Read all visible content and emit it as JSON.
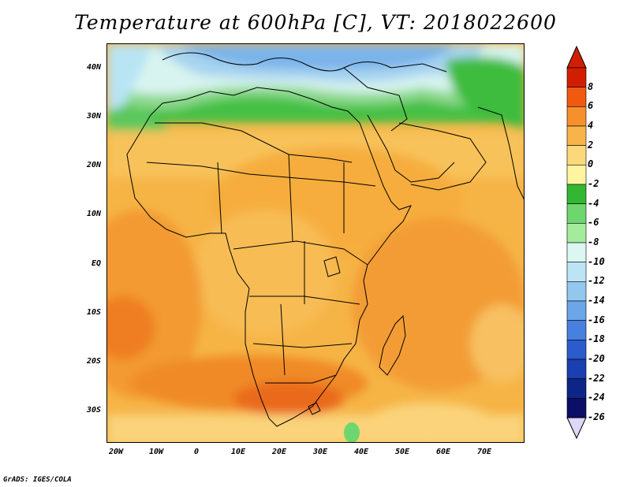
{
  "title": "Temperature at 600hPa [C], VT: 2018022600",
  "credit": "GrADS: IGES/COLA",
  "lat_labels": [
    "40N",
    "30N",
    "20N",
    "10N",
    "EQ",
    "10S",
    "20S",
    "30S"
  ],
  "lon_labels": [
    "20W",
    "10W",
    "0",
    "10E",
    "20E",
    "30E",
    "40E",
    "50E",
    "60E",
    "70E"
  ],
  "colorbar": {
    "labels": [
      "8",
      "6",
      "4",
      "2",
      "0",
      "-2",
      "-4",
      "-6",
      "-8",
      "-10",
      "-12",
      "-14",
      "-16",
      "-18",
      "-20",
      "-22",
      "-24",
      "-26"
    ],
    "colors": [
      "#d21e00",
      "#f05a10",
      "#f6902a",
      "#f7b44a",
      "#fbd87c",
      "#fff4a0",
      "#33b733",
      "#6ed66e",
      "#a4ec9c",
      "#dcf7f2",
      "#bde4f5",
      "#94c7ee",
      "#6aa6e8",
      "#4880e0",
      "#2c5ccc",
      "#1a3fb0",
      "#0e2588",
      "#0b0f66"
    ]
  },
  "map": {
    "region": "Africa",
    "field": "Temperature",
    "units": "C",
    "level": "600hPa",
    "valid_time": "2018022600"
  }
}
